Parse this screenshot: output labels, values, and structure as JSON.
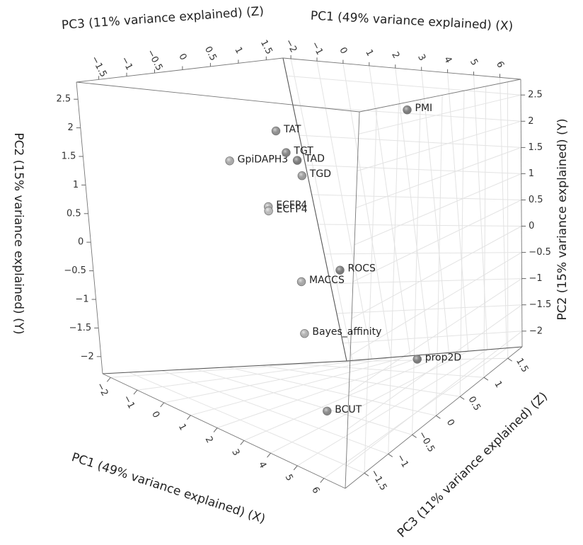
{
  "chart_data": {
    "type": "scatter",
    "dimensions": 3,
    "axes": {
      "x": {
        "label": "PC1 (49% variance explained) (X)",
        "range": [
          -2.3,
          6.8
        ],
        "ticks": [
          -2,
          -1,
          0,
          1,
          2,
          3,
          4,
          5,
          6
        ],
        "tick_labels": [
          "−2",
          "−1",
          "0",
          "1",
          "2",
          "3",
          "4",
          "5",
          "6"
        ]
      },
      "y": {
        "label": "PC2 (15% variance explained) (Y)",
        "range": [
          -2.3,
          2.8
        ],
        "ticks": [
          -2,
          -1.5,
          -1,
          -0.5,
          0,
          0.5,
          1,
          1.5,
          2,
          2.5
        ],
        "tick_labels": [
          "−2",
          "−1.5",
          "−1",
          "−0.5",
          "0",
          "0.5",
          "1",
          "1.5",
          "2",
          "2.5"
        ]
      },
      "z": {
        "label": "PC3 (11% variance explained) (Z)",
        "range": [
          -1.9,
          1.8
        ],
        "ticks": [
          -1.5,
          -1,
          -0.5,
          0,
          0.5,
          1,
          1.5
        ],
        "tick_labels": [
          "−1.5",
          "−1",
          "−0.5",
          "0",
          "0.5",
          "1",
          "1.5"
        ]
      }
    },
    "grid": true,
    "points": [
      {
        "label": "PMI",
        "x": 6.2,
        "y": 2.6,
        "z": -0.4,
        "color": "#8c8c8c"
      },
      {
        "label": "GpiDAPH3",
        "x": 2.0,
        "y": 1.75,
        "z": -1.55,
        "color": "#c8c8c8"
      },
      {
        "label": "TAT",
        "x": -1.2,
        "y": 1.7,
        "z": 0.95,
        "color": "#a4a4a4"
      },
      {
        "label": "TGT",
        "x": -1.4,
        "y": 1.3,
        "z": 1.15,
        "color": "#959595"
      },
      {
        "label": "TAD",
        "x": -2.1,
        "y": 1.1,
        "z": 1.6,
        "color": "#8a8a8a"
      },
      {
        "label": "TGD",
        "x": -1.9,
        "y": 0.85,
        "z": 1.55,
        "color": "#b4b4b4"
      },
      {
        "label": "ECFP4",
        "x": 1.1,
        "y": 0.75,
        "z": -0.4,
        "color": "#d0d0d0"
      },
      {
        "label": "ECFP4",
        "x": 1.1,
        "y": 0.68,
        "z": -0.4,
        "color": "#dcdcdc"
      },
      {
        "label": "ROCS",
        "x": -0.3,
        "y": -0.7,
        "z": 1.3,
        "color": "#8a8a8a"
      },
      {
        "label": "MACCS",
        "x": 1.05,
        "y": -0.6,
        "z": 0.1,
        "color": "#c4c4c4"
      },
      {
        "label": "Bayes_affinity",
        "x": 3.7,
        "y": -0.85,
        "z": -1.1,
        "color": "#d0d0d0"
      },
      {
        "label": "BCUT",
        "x": 3.35,
        "y": -2.3,
        "z": -0.55,
        "color": "#9c9c9c"
      },
      {
        "label": "prop2D",
        "x": 2.1,
        "y": -2.3,
        "z": 1.55,
        "color": "#8c8c8c"
      }
    ]
  }
}
